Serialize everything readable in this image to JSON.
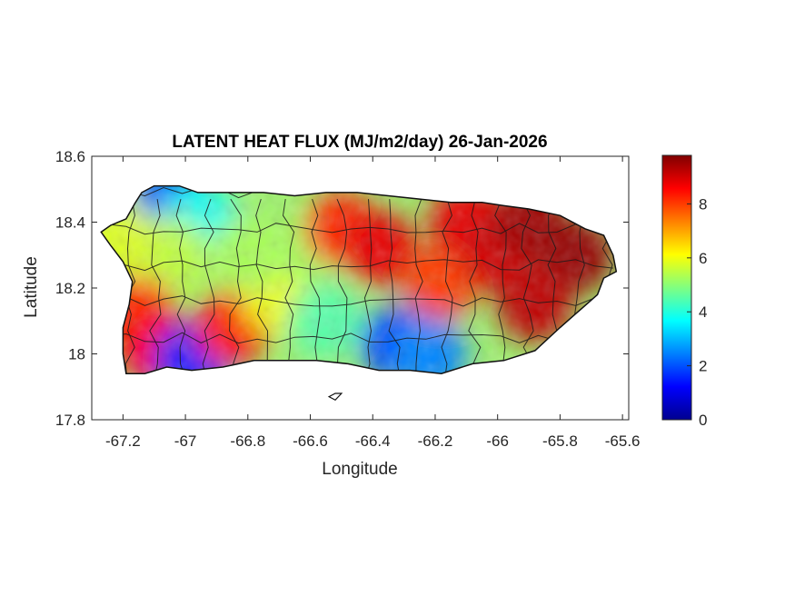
{
  "map": {
    "title": "LATENT HEAT FLUX (MJ/m2/day) 26-Jan-2026",
    "xlabel": "Longitude",
    "ylabel": "Latitude",
    "xlim": [
      -67.3,
      -65.58
    ],
    "ylim": [
      17.8,
      18.6
    ],
    "xticks": [
      {
        "value": -67.2,
        "label": "-67.2"
      },
      {
        "value": -67.0,
        "label": "-67"
      },
      {
        "value": -66.8,
        "label": "-66.8"
      },
      {
        "value": -66.6,
        "label": "-66.6"
      },
      {
        "value": -66.4,
        "label": "-66.4"
      },
      {
        "value": -66.2,
        "label": "-66.2"
      },
      {
        "value": -66.0,
        "label": "-66"
      },
      {
        "value": -65.8,
        "label": "-65.8"
      },
      {
        "value": -65.6,
        "label": "-65.6"
      }
    ],
    "yticks": [
      {
        "value": 17.8,
        "label": "17.8"
      },
      {
        "value": 18.0,
        "label": "18"
      },
      {
        "value": 18.2,
        "label": "18.2"
      },
      {
        "value": 18.4,
        "label": "18.4"
      },
      {
        "value": 18.6,
        "label": "18.6"
      }
    ],
    "coastline": [
      [
        -67.27,
        18.37
      ],
      [
        -67.24,
        18.39
      ],
      [
        -67.19,
        18.41
      ],
      [
        -67.16,
        18.46
      ],
      [
        -67.14,
        18.49
      ],
      [
        -67.1,
        18.51
      ],
      [
        -67.02,
        18.51
      ],
      [
        -66.96,
        18.49
      ],
      [
        -66.85,
        18.49
      ],
      [
        -66.75,
        18.49
      ],
      [
        -66.65,
        18.48
      ],
      [
        -66.55,
        18.49
      ],
      [
        -66.45,
        18.49
      ],
      [
        -66.35,
        18.48
      ],
      [
        -66.25,
        18.47
      ],
      [
        -66.15,
        18.46
      ],
      [
        -66.05,
        18.46
      ],
      [
        -65.98,
        18.45
      ],
      [
        -65.9,
        18.44
      ],
      [
        -65.8,
        18.42
      ],
      [
        -65.72,
        18.38
      ],
      [
        -65.66,
        18.36
      ],
      [
        -65.63,
        18.3
      ],
      [
        -65.62,
        18.25
      ],
      [
        -65.66,
        18.23
      ],
      [
        -65.68,
        18.18
      ],
      [
        -65.74,
        18.13
      ],
      [
        -65.8,
        18.08
      ],
      [
        -65.88,
        18.01
      ],
      [
        -65.98,
        17.98
      ],
      [
        -66.08,
        17.97
      ],
      [
        -66.18,
        17.94
      ],
      [
        -66.28,
        17.95
      ],
      [
        -66.38,
        17.95
      ],
      [
        -66.48,
        17.97
      ],
      [
        -66.58,
        17.98
      ],
      [
        -66.68,
        17.98
      ],
      [
        -66.78,
        17.98
      ],
      [
        -66.88,
        17.96
      ],
      [
        -66.98,
        17.95
      ],
      [
        -67.06,
        17.96
      ],
      [
        -67.13,
        17.94
      ],
      [
        -67.19,
        17.94
      ],
      [
        -67.2,
        18.0
      ],
      [
        -67.2,
        18.08
      ],
      [
        -67.18,
        18.15
      ],
      [
        -67.17,
        18.22
      ],
      [
        -67.2,
        18.28
      ],
      [
        -67.24,
        18.33
      ]
    ],
    "small_island": [
      [
        -66.54,
        17.87
      ],
      [
        -66.52,
        17.88
      ],
      [
        -66.5,
        17.88
      ],
      [
        -66.52,
        17.86
      ]
    ],
    "colorbar": {
      "min": 0,
      "max": 9.8,
      "ticks": [
        {
          "value": 0,
          "label": "0"
        },
        {
          "value": 2,
          "label": "2"
        },
        {
          "value": 4,
          "label": "4"
        },
        {
          "value": 6,
          "label": "6"
        },
        {
          "value": 8,
          "label": "8"
        }
      ],
      "colormap": "jet",
      "stops": [
        "#00008f",
        "#0000ff",
        "#0080ff",
        "#00ffff",
        "#80ff80",
        "#ffff00",
        "#ff8000",
        "#ff0000",
        "#800000"
      ]
    },
    "field_hotspots": [
      {
        "lon": -67.05,
        "lat": 18.47,
        "value": 2.2
      },
      {
        "lon": -66.95,
        "lat": 18.4,
        "value": 3.8
      },
      {
        "lon": -67.05,
        "lat": 18.3,
        "value": 5.5
      },
      {
        "lon": -67.15,
        "lat": 18.12,
        "value": 8.2
      },
      {
        "lon": -67.1,
        "lat": 18.02,
        "value": 8.6
      },
      {
        "lon": -66.98,
        "lat": 17.98,
        "value": 1.5
      },
      {
        "lon": -66.85,
        "lat": 18.08,
        "value": 8.4
      },
      {
        "lon": -66.7,
        "lat": 18.18,
        "value": 6.0
      },
      {
        "lon": -66.6,
        "lat": 18.33,
        "value": 5.2
      },
      {
        "lon": -66.5,
        "lat": 18.38,
        "value": 8.2
      },
      {
        "lon": -66.38,
        "lat": 18.32,
        "value": 8.8
      },
      {
        "lon": -66.32,
        "lat": 18.03,
        "value": 1.8
      },
      {
        "lon": -66.22,
        "lat": 18.0,
        "value": 2.5
      },
      {
        "lon": -66.18,
        "lat": 18.22,
        "value": 8.0
      },
      {
        "lon": -66.1,
        "lat": 18.4,
        "value": 8.8
      },
      {
        "lon": -66.0,
        "lat": 18.3,
        "value": 9.0
      },
      {
        "lon": -65.9,
        "lat": 18.4,
        "value": 9.5
      },
      {
        "lon": -65.75,
        "lat": 18.3,
        "value": 9.6
      },
      {
        "lon": -65.88,
        "lat": 18.15,
        "value": 9.2
      },
      {
        "lon": -66.55,
        "lat": 18.1,
        "value": 4.5
      },
      {
        "lon": -66.8,
        "lat": 18.3,
        "value": 5.3
      },
      {
        "lon": -67.22,
        "lat": 18.35,
        "value": 5.8
      }
    ]
  }
}
